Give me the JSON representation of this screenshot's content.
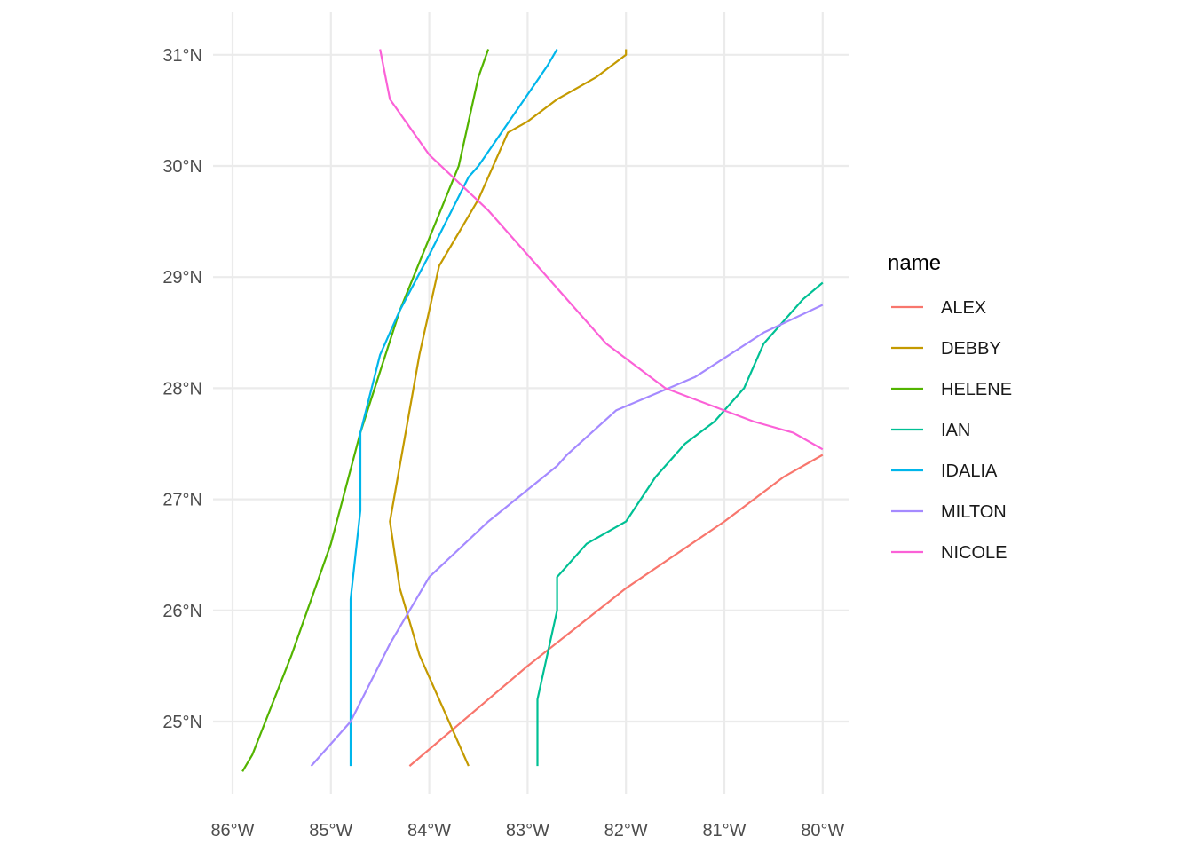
{
  "chart_data": {
    "type": "line",
    "title": "",
    "xlabel": "",
    "ylabel": "",
    "xlim": [
      -86.1,
      -79.7
    ],
    "ylim": [
      24.4,
      31.3
    ],
    "x_ticks": [
      {
        "value": -86,
        "label": "86°W"
      },
      {
        "value": -85,
        "label": "85°W"
      },
      {
        "value": -84,
        "label": "84°W"
      },
      {
        "value": -83,
        "label": "83°W"
      },
      {
        "value": -82,
        "label": "82°W"
      },
      {
        "value": -81,
        "label": "81°W"
      },
      {
        "value": -80,
        "label": "80°W"
      }
    ],
    "y_ticks": [
      {
        "value": 25,
        "label": "25°N"
      },
      {
        "value": 26,
        "label": "26°N"
      },
      {
        "value": 27,
        "label": "27°N"
      },
      {
        "value": 28,
        "label": "28°N"
      },
      {
        "value": 29,
        "label": "29°N"
      },
      {
        "value": 30,
        "label": "30°N"
      },
      {
        "value": 31,
        "label": "31°N"
      }
    ],
    "grid": true,
    "legend": {
      "title": "name",
      "position": "right"
    },
    "series": [
      {
        "name": "ALEX",
        "color": "#F8766D",
        "points": [
          [
            -84.2,
            24.6
          ],
          [
            -83.8,
            24.9
          ],
          [
            -83.0,
            25.5
          ],
          [
            -82.0,
            26.2
          ],
          [
            -81.0,
            26.8
          ],
          [
            -80.4,
            27.2
          ],
          [
            -80.0,
            27.4
          ]
        ]
      },
      {
        "name": "DEBBY",
        "color": "#C49A00",
        "points": [
          [
            -83.6,
            24.6
          ],
          [
            -84.1,
            25.6
          ],
          [
            -84.3,
            26.2
          ],
          [
            -84.4,
            26.8
          ],
          [
            -84.1,
            28.3
          ],
          [
            -83.9,
            29.1
          ],
          [
            -83.5,
            29.7
          ],
          [
            -83.2,
            30.3
          ],
          [
            -83.0,
            30.4
          ],
          [
            -82.7,
            30.6
          ],
          [
            -82.3,
            30.8
          ],
          [
            -82.0,
            31.0
          ],
          [
            -82.0,
            31.05
          ]
        ]
      },
      {
        "name": "HELENE",
        "color": "#53B400",
        "points": [
          [
            -85.9,
            24.55
          ],
          [
            -85.8,
            24.7
          ],
          [
            -85.4,
            25.6
          ],
          [
            -85.0,
            26.6
          ],
          [
            -84.7,
            27.6
          ],
          [
            -84.3,
            28.7
          ],
          [
            -83.7,
            30.0
          ],
          [
            -83.5,
            30.8
          ],
          [
            -83.4,
            31.05
          ]
        ]
      },
      {
        "name": "IAN",
        "color": "#00C094",
        "points": [
          [
            -82.9,
            24.6
          ],
          [
            -82.9,
            25.2
          ],
          [
            -82.7,
            26.0
          ],
          [
            -82.7,
            26.3
          ],
          [
            -82.4,
            26.6
          ],
          [
            -82.0,
            26.8
          ],
          [
            -81.7,
            27.2
          ],
          [
            -81.4,
            27.5
          ],
          [
            -81.1,
            27.7
          ],
          [
            -80.8,
            28.0
          ],
          [
            -80.6,
            28.4
          ],
          [
            -80.2,
            28.8
          ],
          [
            -80.0,
            28.95
          ]
        ]
      },
      {
        "name": "IDALIA",
        "color": "#00B6EB",
        "points": [
          [
            -84.8,
            24.6
          ],
          [
            -84.8,
            26.1
          ],
          [
            -84.7,
            26.9
          ],
          [
            -84.7,
            27.6
          ],
          [
            -84.5,
            28.3
          ],
          [
            -84.3,
            28.7
          ],
          [
            -84.0,
            29.2
          ],
          [
            -83.6,
            29.9
          ],
          [
            -83.5,
            30.0
          ],
          [
            -82.8,
            30.9
          ],
          [
            -82.7,
            31.05
          ]
        ]
      },
      {
        "name": "MILTON",
        "color": "#A58AFF",
        "points": [
          [
            -85.2,
            24.6
          ],
          [
            -84.8,
            25.0
          ],
          [
            -84.4,
            25.7
          ],
          [
            -84.0,
            26.3
          ],
          [
            -83.4,
            26.8
          ],
          [
            -82.7,
            27.3
          ],
          [
            -82.6,
            27.4
          ],
          [
            -82.1,
            27.8
          ],
          [
            -81.3,
            28.1
          ],
          [
            -80.6,
            28.5
          ],
          [
            -80.0,
            28.75
          ]
        ]
      },
      {
        "name": "NICOLE",
        "color": "#FB61D7",
        "points": [
          [
            -84.5,
            31.05
          ],
          [
            -84.4,
            30.6
          ],
          [
            -84.0,
            30.1
          ],
          [
            -83.4,
            29.6
          ],
          [
            -82.2,
            28.4
          ],
          [
            -81.6,
            28.0
          ],
          [
            -80.7,
            27.7
          ],
          [
            -80.3,
            27.6
          ],
          [
            -80.0,
            27.45
          ]
        ]
      }
    ]
  }
}
